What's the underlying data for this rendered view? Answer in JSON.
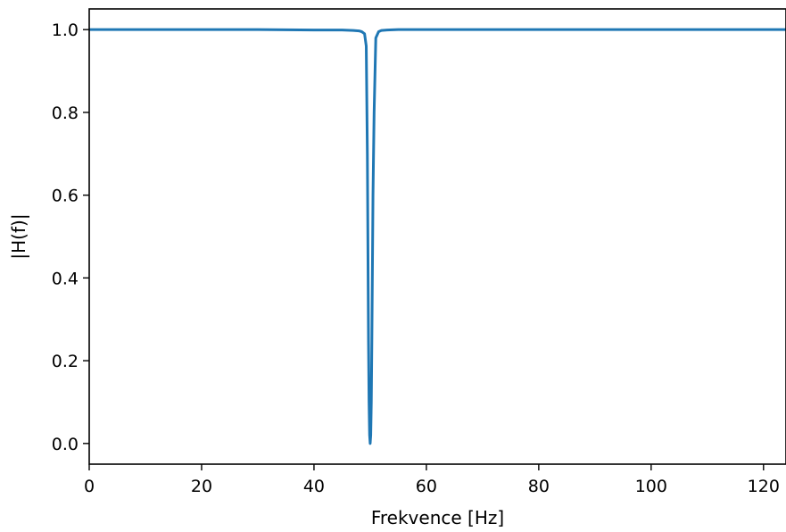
{
  "chart_data": {
    "type": "line",
    "title": "",
    "xlabel": "Frekvence [Hz]",
    "ylabel": "|H(f)|",
    "xlim": [
      0,
      124
    ],
    "ylim": [
      -0.05,
      1.05
    ],
    "xticks": [
      0,
      20,
      40,
      60,
      80,
      100,
      120
    ],
    "yticks": [
      0.0,
      0.2,
      0.4,
      0.6,
      0.8,
      1.0
    ],
    "xtick_labels": [
      "0",
      "20",
      "40",
      "60",
      "80",
      "100",
      "120"
    ],
    "ytick_labels": [
      "0.0",
      "0.2",
      "0.4",
      "0.6",
      "0.8",
      "1.0"
    ],
    "grid": false,
    "series": [
      {
        "color": "#1f77b4",
        "x": [
          0,
          10,
          20,
          30,
          40,
          45,
          47,
          48,
          48.5,
          49,
          49.3,
          49.5,
          49.7,
          49.8,
          49.9,
          50.0,
          50.1,
          50.2,
          50.3,
          50.5,
          50.7,
          51,
          51.5,
          52,
          53,
          55,
          60,
          70,
          80,
          90,
          100,
          110,
          124
        ],
        "values": [
          1.0,
          1.0,
          1.0,
          1.0,
          0.999,
          0.999,
          0.998,
          0.997,
          0.995,
          0.99,
          0.96,
          0.7,
          0.25,
          0.1,
          0.02,
          0.0,
          0.02,
          0.1,
          0.25,
          0.6,
          0.8,
          0.98,
          0.995,
          0.998,
          0.999,
          1.0,
          1.0,
          1.0,
          1.0,
          1.0,
          1.0,
          1.0,
          1.0
        ]
      }
    ]
  }
}
